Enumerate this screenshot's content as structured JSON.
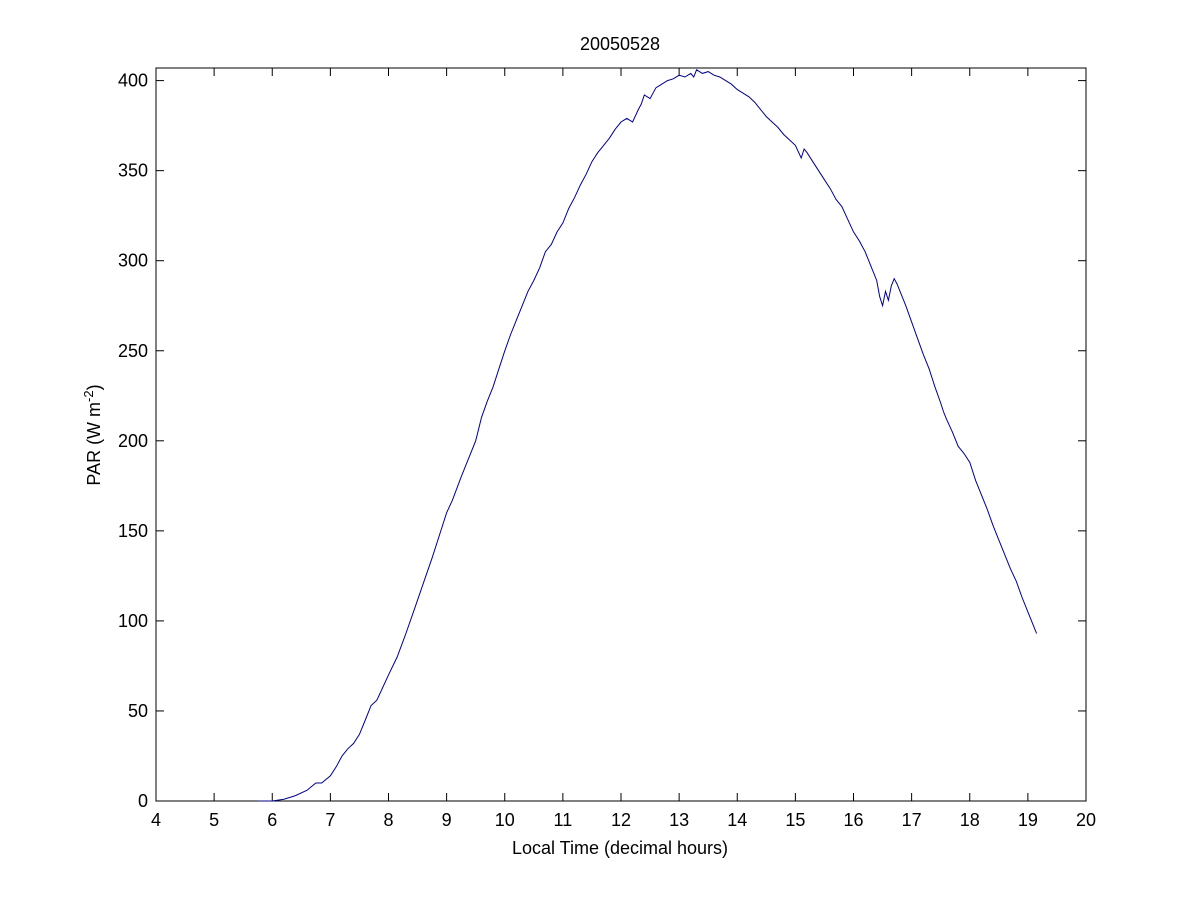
{
  "chart_data": {
    "type": "line",
    "title": "20050528",
    "xlabel": "Local Time (decimal hours)",
    "ylabel": {
      "main": "PAR (W m",
      "sup": "-2",
      "close": ")"
    },
    "xlim": [
      4,
      20
    ],
    "ylim": [
      0,
      407
    ],
    "xticks": [
      4,
      5,
      6,
      7,
      8,
      9,
      10,
      11,
      12,
      13,
      14,
      15,
      16,
      17,
      18,
      19,
      20
    ],
    "yticks": [
      0,
      50,
      100,
      150,
      200,
      250,
      300,
      350,
      400
    ],
    "grid": false,
    "line_color": "#00008b",
    "series": [
      {
        "x": [
          5.75,
          6.0,
          6.2,
          6.4,
          6.6,
          6.75,
          6.85,
          7.0,
          7.1,
          7.2,
          7.3,
          7.4,
          7.5,
          7.6,
          7.7,
          7.8,
          7.9,
          8.0,
          8.15,
          8.3,
          8.45,
          8.6,
          8.75,
          8.9,
          9.0,
          9.1,
          9.25,
          9.4,
          9.5,
          9.6,
          9.7,
          9.8,
          9.9,
          10.0,
          10.1,
          10.2,
          10.3,
          10.4,
          10.5,
          10.6,
          10.7,
          10.8,
          10.9,
          11.0,
          11.1,
          11.2,
          11.3,
          11.4,
          11.5,
          11.6,
          11.7,
          11.8,
          11.9,
          12.0,
          12.1,
          12.2,
          12.3,
          12.35,
          12.4,
          12.5,
          12.55,
          12.6,
          12.7,
          12.8,
          12.9,
          13.0,
          13.1,
          13.2,
          13.25,
          13.3,
          13.4,
          13.5,
          13.6,
          13.7,
          13.8,
          13.9,
          14.0,
          14.1,
          14.2,
          14.3,
          14.4,
          14.5,
          14.6,
          14.7,
          14.8,
          14.9,
          15.0,
          15.1,
          15.15,
          15.2,
          15.3,
          15.4,
          15.5,
          15.6,
          15.7,
          15.8,
          15.9,
          16.0,
          16.1,
          16.2,
          16.3,
          16.4,
          16.45,
          16.5,
          16.55,
          16.6,
          16.65,
          16.7,
          16.75,
          16.8,
          16.85,
          16.9,
          17.0,
          17.1,
          17.2,
          17.3,
          17.4,
          17.5,
          17.55,
          17.6,
          17.7,
          17.8,
          17.85,
          17.9,
          18.0,
          18.1,
          18.2,
          18.3,
          18.4,
          18.5,
          18.6,
          18.7,
          18.8,
          18.9,
          19.0,
          19.1,
          19.15
        ],
        "y": [
          0,
          0,
          1,
          3,
          6,
          10,
          10,
          14,
          19,
          25,
          29,
          32,
          37,
          45,
          53,
          56,
          63,
          70,
          80,
          93,
          107,
          121,
          135,
          150,
          160,
          167,
          180,
          192,
          200,
          213,
          222,
          230,
          240,
          250,
          259,
          267,
          275,
          283,
          289,
          296,
          305,
          309,
          316,
          321,
          329,
          335,
          342,
          348,
          355,
          360,
          364,
          368,
          373,
          377,
          379,
          377,
          384,
          387,
          392,
          390,
          393,
          396,
          398,
          400,
          401,
          403,
          402,
          404,
          402,
          406,
          404,
          405,
          403,
          402,
          400,
          398,
          395,
          393,
          391,
          388,
          384,
          380,
          377,
          374,
          370,
          367,
          364,
          357,
          362,
          360,
          355,
          350,
          345,
          340,
          334,
          330,
          323,
          316,
          311,
          305,
          297,
          289,
          280,
          275,
          283,
          278,
          286,
          290,
          287,
          283,
          279,
          275,
          266,
          257,
          248,
          240,
          230,
          221,
          216,
          212,
          205,
          197,
          195,
          193,
          188,
          178,
          170,
          162,
          153,
          145,
          137,
          129,
          122,
          113,
          105,
          97,
          93
        ]
      }
    ]
  }
}
